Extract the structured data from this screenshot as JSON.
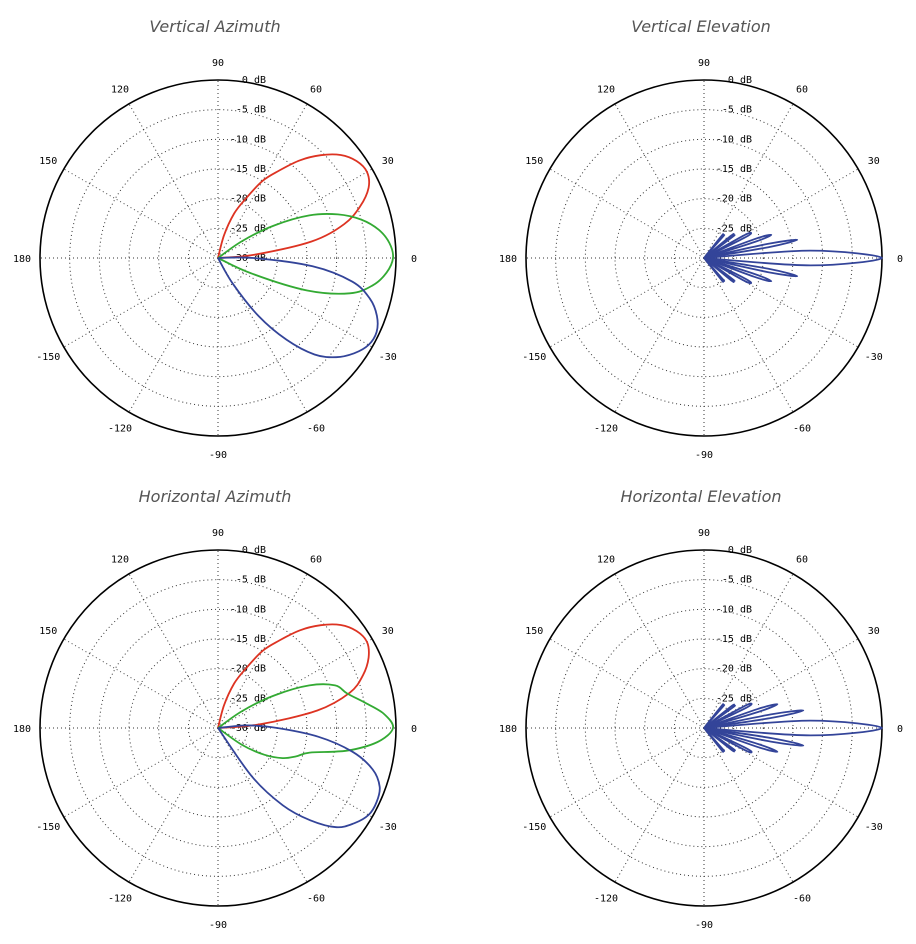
{
  "charts": [
    {
      "title": "Vertical Azimuth",
      "chart_data": {
        "type": "polar",
        "angle_labels": [
          "90",
          "60",
          "30",
          "0",
          "-30",
          "-60",
          "-90",
          "-120",
          "-150",
          "180",
          "150",
          "120"
        ],
        "radial_labels": [
          "0 dB",
          "-5 dB",
          "-10 dB",
          "-15 dB",
          "-20 dB",
          "-25 dB",
          "-30 dB"
        ],
        "rlim": [
          -30,
          0
        ],
        "series": [
          {
            "color": "#dd3322",
            "theta": [
              0,
              5,
              10,
              15,
              20,
              25,
              30,
              35,
              40,
              45,
              50,
              55,
              60,
              65,
              70,
              75,
              80
            ],
            "r": [
              -30,
              -24,
              -14,
              -8,
              -4.5,
              -2,
              -1,
              -1.5,
              -3,
              -5.5,
              -8.5,
              -12,
              -15,
              -19,
              -22,
              -26,
              -30
            ]
          },
          {
            "color": "#33aa33",
            "theta": [
              -30,
              -25,
              -20,
              -15,
              -10,
              -5,
              0,
              5,
              10,
              15,
              20,
              25,
              30,
              35,
              40
            ],
            "r": [
              -30,
              -24,
              -14,
              -7,
              -3.5,
              -1.5,
              -0.5,
              -1,
              -2.5,
              -5,
              -8.5,
              -13,
              -19,
              -25,
              -30
            ]
          },
          {
            "color": "#334499",
            "theta": [
              5,
              0,
              -5,
              -10,
              -15,
              -20,
              -25,
              -30,
              -35,
              -40,
              -45,
              -50,
              -55,
              -60,
              -65
            ],
            "r": [
              -30,
              -24,
              -14,
              -7,
              -3.5,
              -1.5,
              -0.5,
              -0.7,
              -2,
              -4,
              -7,
              -12,
              -18,
              -25,
              -30
            ]
          }
        ]
      }
    },
    {
      "title": "Vertical Elevation",
      "chart_data": {
        "type": "polar",
        "angle_labels": [
          "90",
          "60",
          "30",
          "0",
          "-30",
          "-60",
          "-90",
          "-120",
          "-150",
          "180",
          "150",
          "120"
        ],
        "radial_labels": [
          "0 dB",
          "-5 dB",
          "-10 dB",
          "-15 dB",
          "-20 dB",
          "-25 dB"
        ],
        "rlim": [
          -30,
          0
        ],
        "series": [
          {
            "color": "#334499",
            "lobes": [
              {
                "theta": 0,
                "r": 0,
                "width": 8
              },
              {
                "theta": 11,
                "r": -14,
                "width": 3
              },
              {
                "theta": -11,
                "r": -14,
                "width": 3
              },
              {
                "theta": 19,
                "r": -18,
                "width": 3
              },
              {
                "theta": -19,
                "r": -18,
                "width": 3
              },
              {
                "theta": 28,
                "r": -21,
                "width": 3
              },
              {
                "theta": -28,
                "r": -21,
                "width": 3
              },
              {
                "theta": 38,
                "r": -24,
                "width": 3
              },
              {
                "theta": -38,
                "r": -24,
                "width": 3
              },
              {
                "theta": 50,
                "r": -26,
                "width": 3
              },
              {
                "theta": -50,
                "r": -26,
                "width": 3
              }
            ]
          }
        ]
      }
    },
    {
      "title": "Horizontal Azimuth",
      "chart_data": {
        "type": "polar",
        "angle_labels": [
          "90",
          "60",
          "30",
          "0",
          "-30",
          "-60",
          "-90",
          "-120",
          "-150",
          "180",
          "150",
          "120"
        ],
        "radial_labels": [
          "0 dB",
          "-5 dB",
          "-10 dB",
          "-15 dB",
          "-20 dB",
          "-25 dB",
          "-30 dB"
        ],
        "rlim": [
          -30,
          0
        ],
        "series": [
          {
            "color": "#dd3322",
            "theta": [
              0,
              5,
              10,
              15,
              20,
              25,
              30,
              35,
              40,
              45,
              50,
              55,
              60,
              65,
              70,
              75,
              80
            ],
            "r": [
              -30,
              -23,
              -13,
              -7,
              -4,
              -2,
              -1,
              -1.5,
              -3,
              -5.5,
              -8.5,
              -12,
              -15,
              -19,
              -22,
              -26,
              -30
            ]
          },
          {
            "color": "#33aa33",
            "theta": [
              -40,
              -35,
              -30,
              -25,
              -20,
              -15,
              -10,
              -5,
              0,
              5,
              10,
              15,
              20,
              25,
              30,
              35,
              40
            ],
            "r": [
              -30,
              -25,
              -21,
              -18,
              -16,
              -14,
              -8,
              -3,
              -0.5,
              -2,
              -5,
              -7.5,
              -9,
              -13,
              -19,
              -25,
              -30
            ]
          },
          {
            "color": "#334499",
            "theta": [
              10,
              5,
              0,
              -5,
              -10,
              -15,
              -20,
              -25,
              -30,
              -35,
              -40,
              -45,
              -50,
              -55,
              -60
            ],
            "r": [
              -30,
              -25,
              -20,
              -13,
              -7,
              -3,
              -1,
              -0.5,
              -0.7,
              -2,
              -4,
              -8,
              -13,
              -20,
              -30
            ]
          }
        ]
      }
    },
    {
      "title": "Horizontal Elevation",
      "chart_data": {
        "type": "polar",
        "angle_labels": [
          "90",
          "60",
          "30",
          "0",
          "-30",
          "-60",
          "-90",
          "-120",
          "-150",
          "180",
          "150",
          "120"
        ],
        "radial_labels": [
          "0 dB",
          "-5 dB",
          "-10 dB",
          "-15 dB",
          "-20 dB",
          "-25 dB"
        ],
        "rlim": [
          -30,
          0
        ],
        "series": [
          {
            "color": "#334499",
            "lobes": [
              {
                "theta": 0,
                "r": 0,
                "width": 8
              },
              {
                "theta": 10,
                "r": -13,
                "width": 3
              },
              {
                "theta": -10,
                "r": -13,
                "width": 3
              },
              {
                "theta": 18,
                "r": -17,
                "width": 3
              },
              {
                "theta": -18,
                "r": -17,
                "width": 3
              },
              {
                "theta": 27,
                "r": -21,
                "width": 3
              },
              {
                "theta": -27,
                "r": -21,
                "width": 3
              },
              {
                "theta": 37,
                "r": -24,
                "width": 3
              },
              {
                "theta": -37,
                "r": -24,
                "width": 3
              },
              {
                "theta": 50,
                "r": -26,
                "width": 3
              },
              {
                "theta": -50,
                "r": -26,
                "width": 3
              }
            ]
          }
        ]
      }
    }
  ]
}
